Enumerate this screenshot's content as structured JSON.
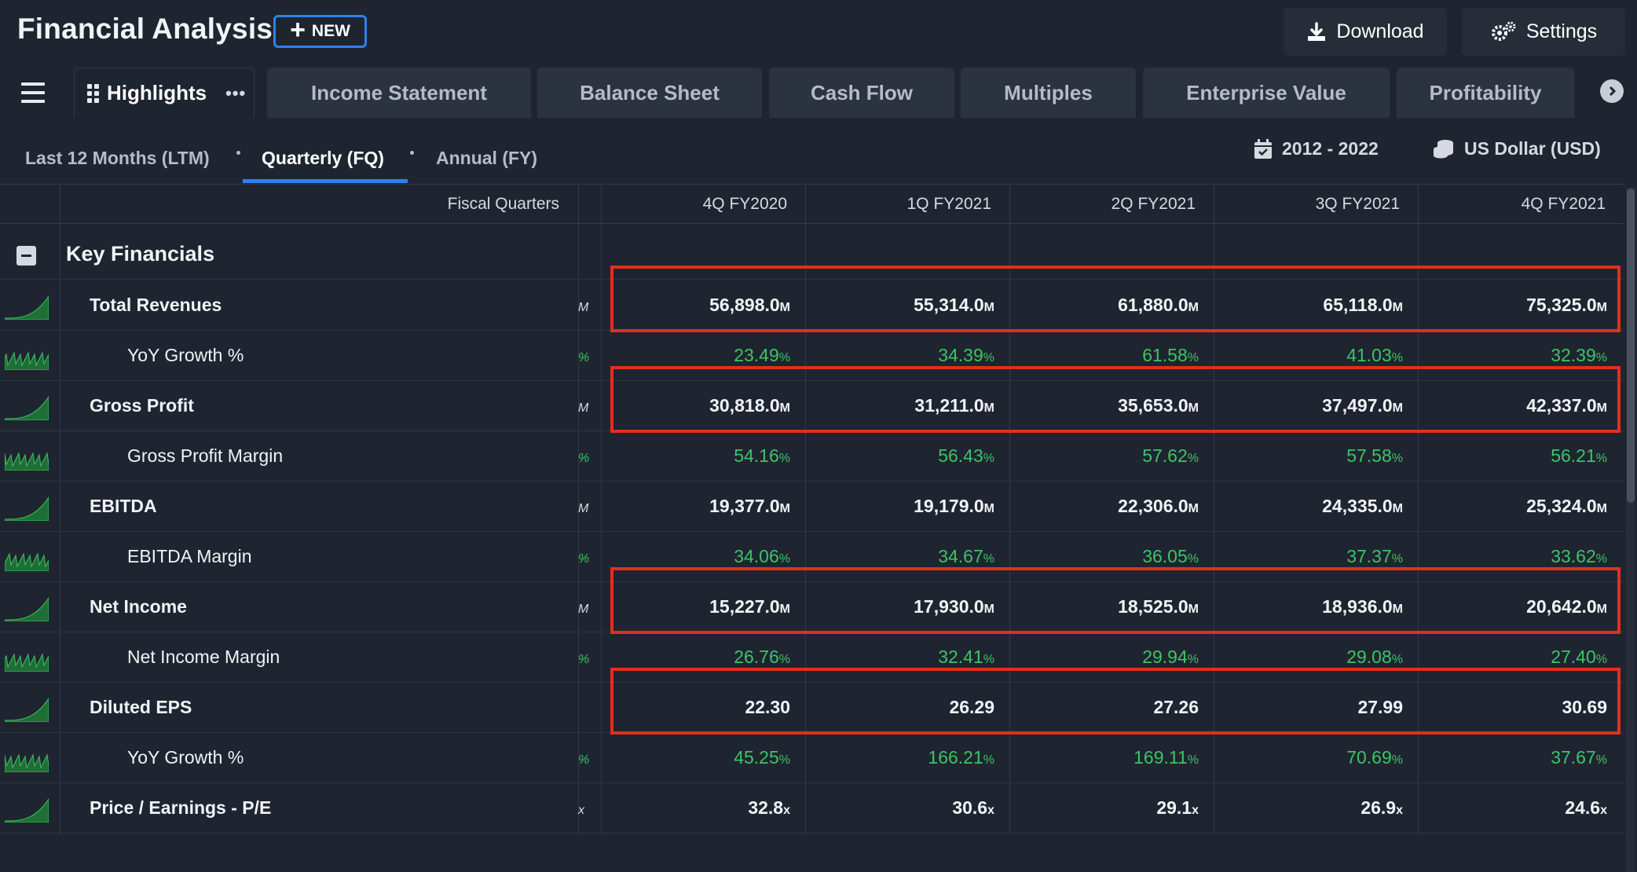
{
  "header": {
    "title": "Financial Analysis",
    "new_label": "NEW",
    "download_label": "Download",
    "settings_label": "Settings"
  },
  "tabs": [
    {
      "label": "Highlights",
      "active": true
    },
    {
      "label": "Income Statement"
    },
    {
      "label": "Balance Sheet"
    },
    {
      "label": "Cash Flow"
    },
    {
      "label": "Multiples"
    },
    {
      "label": "Enterprise Value"
    },
    {
      "label": "Profitability"
    }
  ],
  "periods": {
    "ltm": "Last 12 Months (LTM)",
    "fq": "Quarterly (FQ)",
    "fy": "Annual (FY)",
    "active": "fq"
  },
  "meta": {
    "date_range": "2012 - 2022",
    "currency": "US Dollar (USD)"
  },
  "table": {
    "header_label": "Fiscal Quarters",
    "columns": [
      "4Q FY2020",
      "1Q FY2021",
      "2Q FY2021",
      "3Q FY2021",
      "4Q FY2021"
    ],
    "section_title": "Key Financials",
    "rows": [
      {
        "label": "Total Revenues",
        "sub": false,
        "green": false,
        "clip": "M",
        "unit": "M",
        "values": [
          "56,898.0",
          "55,314.0",
          "61,880.0",
          "65,118.0",
          "75,325.0"
        ],
        "highlighted": true
      },
      {
        "label": "YoY Growth %",
        "sub": true,
        "green": true,
        "clip": "%",
        "unit": "%",
        "values": [
          "23.49",
          "34.39",
          "61.58",
          "41.03",
          "32.39"
        ]
      },
      {
        "label": "Gross Profit",
        "sub": false,
        "green": false,
        "clip": "M",
        "unit": "M",
        "values": [
          "30,818.0",
          "31,211.0",
          "35,653.0",
          "37,497.0",
          "42,337.0"
        ],
        "highlighted": true
      },
      {
        "label": "Gross Profit Margin",
        "sub": true,
        "green": true,
        "clip": "%",
        "unit": "%",
        "values": [
          "54.16",
          "56.43",
          "57.62",
          "57.58",
          "56.21"
        ]
      },
      {
        "label": "EBITDA",
        "sub": false,
        "green": false,
        "clip": "M",
        "unit": "M",
        "values": [
          "19,377.0",
          "19,179.0",
          "22,306.0",
          "24,335.0",
          "25,324.0"
        ]
      },
      {
        "label": "EBITDA Margin",
        "sub": true,
        "green": true,
        "clip": "%",
        "unit": "%",
        "values": [
          "34.06",
          "34.67",
          "36.05",
          "37.37",
          "33.62"
        ]
      },
      {
        "label": "Net Income",
        "sub": false,
        "green": false,
        "clip": "M",
        "unit": "M",
        "values": [
          "15,227.0",
          "17,930.0",
          "18,525.0",
          "18,936.0",
          "20,642.0"
        ],
        "highlighted": true
      },
      {
        "label": "Net Income Margin",
        "sub": true,
        "green": true,
        "clip": "%",
        "unit": "%",
        "values": [
          "26.76",
          "32.41",
          "29.94",
          "29.08",
          "27.40"
        ]
      },
      {
        "label": "Diluted EPS",
        "sub": false,
        "green": false,
        "clip": "",
        "unit": "",
        "values": [
          "22.30",
          "26.29",
          "27.26",
          "27.99",
          "30.69"
        ],
        "highlighted": true
      },
      {
        "label": "YoY Growth %",
        "sub": true,
        "green": true,
        "clip": "%",
        "unit": "%",
        "values": [
          "45.25",
          "166.21",
          "169.11",
          "70.69",
          "37.67"
        ]
      },
      {
        "label": "Price / Earnings - P/E",
        "sub": false,
        "green": false,
        "clip": "x",
        "unit": "x",
        "values": [
          "32.8",
          "30.6",
          "29.1",
          "26.9",
          "24.6"
        ]
      }
    ]
  },
  "colors": {
    "background": "#1f2530",
    "accent": "#2f80ed",
    "positive": "#3cc464",
    "highlight_box": "#e0301e"
  }
}
